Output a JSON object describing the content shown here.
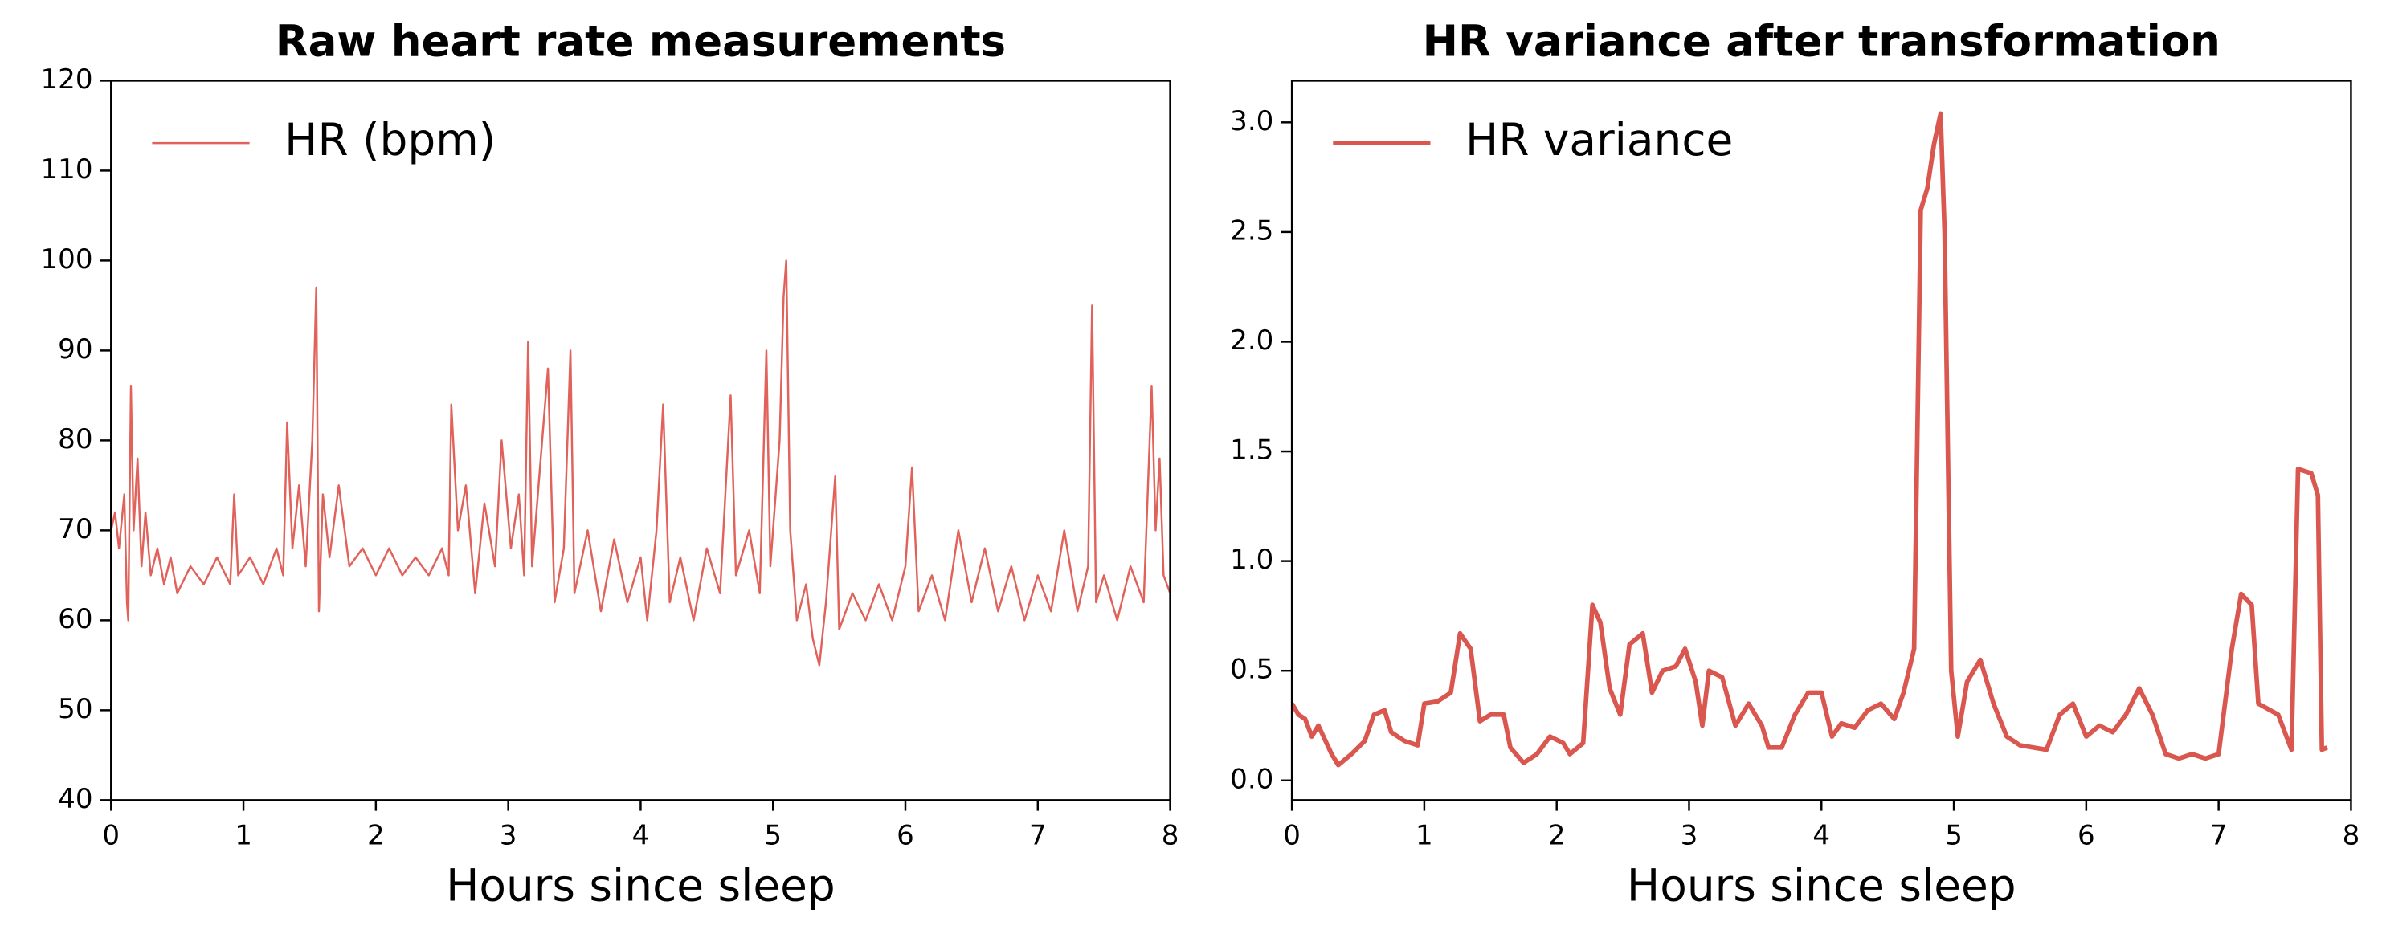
{
  "chart_data": [
    {
      "type": "line",
      "title": "Raw heart rate measurements",
      "xlabel": "Hours since sleep",
      "x": [
        0,
        0.03,
        0.06,
        0.1,
        0.12,
        0.13,
        0.15,
        0.17,
        0.2,
        0.23,
        0.26,
        0.3,
        0.35,
        0.4,
        0.45,
        0.5,
        0.6,
        0.7,
        0.8,
        0.9,
        0.93,
        0.96,
        1.05,
        1.15,
        1.25,
        1.3,
        1.33,
        1.37,
        1.42,
        1.47,
        1.52,
        1.55,
        1.57,
        1.6,
        1.65,
        1.72,
        1.8,
        1.9,
        2.0,
        2.1,
        2.2,
        2.3,
        2.4,
        2.5,
        2.55,
        2.57,
        2.62,
        2.68,
        2.75,
        2.82,
        2.9,
        2.95,
        3.02,
        3.08,
        3.12,
        3.15,
        3.18,
        3.3,
        3.35,
        3.42,
        3.47,
        3.5,
        3.6,
        3.7,
        3.8,
        3.9,
        4.0,
        4.05,
        4.12,
        4.17,
        4.22,
        4.3,
        4.4,
        4.5,
        4.6,
        4.68,
        4.72,
        4.82,
        4.9,
        4.95,
        4.98,
        5.05,
        5.08,
        5.1,
        5.13,
        5.18,
        5.25,
        5.3,
        5.35,
        5.4,
        5.47,
        5.5,
        5.6,
        5.7,
        5.8,
        5.9,
        6.0,
        6.05,
        6.1,
        6.2,
        6.3,
        6.4,
        6.5,
        6.6,
        6.7,
        6.8,
        6.9,
        7.0,
        7.1,
        7.2,
        7.3,
        7.38,
        7.41,
        7.44,
        7.5,
        7.6,
        7.7,
        7.8,
        7.86,
        7.89,
        7.92,
        7.95,
        8.0
      ],
      "series": [
        {
          "name": "HR (bpm)",
          "color": "#e0625a",
          "values": [
            70,
            72,
            68,
            74,
            62,
            60,
            86,
            70,
            78,
            66,
            72,
            65,
            68,
            64,
            67,
            63,
            66,
            64,
            67,
            64,
            74,
            65,
            67,
            64,
            68,
            65,
            82,
            68,
            75,
            66,
            80,
            97,
            61,
            74,
            67,
            75,
            66,
            68,
            65,
            68,
            65,
            67,
            65,
            68,
            65,
            84,
            70,
            75,
            63,
            73,
            66,
            80,
            68,
            74,
            65,
            91,
            66,
            88,
            62,
            68,
            90,
            63,
            70,
            61,
            69,
            62,
            67,
            60,
            70,
            84,
            62,
            67,
            60,
            68,
            63,
            85,
            65,
            70,
            63,
            90,
            66,
            80,
            96,
            100,
            70,
            60,
            64,
            58,
            55,
            62,
            76,
            59,
            63,
            60,
            64,
            60,
            66,
            77,
            61,
            65,
            60,
            70,
            62,
            68,
            61,
            66,
            60,
            65,
            61,
            70,
            61,
            66,
            95,
            62,
            65,
            60,
            66,
            62,
            86,
            70,
            78,
            65,
            63
          ]
        }
      ],
      "xlim": [
        0,
        8
      ],
      "ylim": [
        40,
        120
      ],
      "xticks": [
        0,
        1,
        2,
        3,
        4,
        5,
        6,
        7,
        8
      ],
      "yticks": [
        40,
        50,
        60,
        70,
        80,
        90,
        100,
        110,
        120
      ],
      "legend": "upper left",
      "line_width": 1.3
    },
    {
      "type": "line",
      "title": "HR variance after transformation",
      "xlabel": "Hours since sleep",
      "x": [
        0,
        0.05,
        0.1,
        0.15,
        0.2,
        0.3,
        0.35,
        0.45,
        0.55,
        0.62,
        0.7,
        0.75,
        0.85,
        0.95,
        1.0,
        1.1,
        1.2,
        1.27,
        1.35,
        1.42,
        1.5,
        1.6,
        1.65,
        1.75,
        1.85,
        1.95,
        2.05,
        2.1,
        2.2,
        2.27,
        2.33,
        2.4,
        2.48,
        2.55,
        2.65,
        2.72,
        2.8,
        2.9,
        2.97,
        3.05,
        3.1,
        3.15,
        3.25,
        3.35,
        3.45,
        3.55,
        3.6,
        3.7,
        3.8,
        3.9,
        4.0,
        4.08,
        4.15,
        4.25,
        4.35,
        4.45,
        4.55,
        4.62,
        4.7,
        4.75,
        4.8,
        4.85,
        4.9,
        4.93,
        4.98,
        5.03,
        5.1,
        5.2,
        5.3,
        5.4,
        5.5,
        5.6,
        5.7,
        5.8,
        5.9,
        6.0,
        6.1,
        6.2,
        6.3,
        6.4,
        6.5,
        6.6,
        6.7,
        6.8,
        6.9,
        7.0,
        7.1,
        7.17,
        7.25,
        7.3,
        7.45,
        7.55,
        7.6,
        7.7,
        7.75,
        7.78,
        7.82
      ],
      "series": [
        {
          "name": "HR variance",
          "color": "#d9574f",
          "values": [
            0.35,
            0.3,
            0.28,
            0.2,
            0.25,
            0.12,
            0.07,
            0.12,
            0.18,
            0.3,
            0.32,
            0.22,
            0.18,
            0.16,
            0.35,
            0.36,
            0.4,
            0.67,
            0.6,
            0.27,
            0.3,
            0.3,
            0.15,
            0.08,
            0.12,
            0.2,
            0.17,
            0.12,
            0.17,
            0.8,
            0.72,
            0.42,
            0.3,
            0.62,
            0.67,
            0.4,
            0.5,
            0.52,
            0.6,
            0.45,
            0.25,
            0.5,
            0.47,
            0.25,
            0.35,
            0.25,
            0.15,
            0.15,
            0.3,
            0.4,
            0.4,
            0.2,
            0.26,
            0.24,
            0.32,
            0.35,
            0.28,
            0.4,
            0.6,
            2.6,
            2.7,
            2.9,
            3.04,
            2.5,
            0.5,
            0.2,
            0.45,
            0.55,
            0.35,
            0.2,
            0.16,
            0.15,
            0.14,
            0.3,
            0.35,
            0.2,
            0.25,
            0.22,
            0.3,
            0.42,
            0.3,
            0.12,
            0.1,
            0.12,
            0.1,
            0.12,
            0.6,
            0.85,
            0.8,
            0.35,
            0.3,
            0.14,
            1.42,
            1.4,
            1.3,
            0.14,
            0.15
          ]
        }
      ],
      "xlim": [
        0,
        8
      ],
      "ylim": [
        -0.09,
        3.19
      ],
      "xticks": [
        0,
        1,
        2,
        3,
        4,
        5,
        6,
        7,
        8
      ],
      "yticks": [
        {
          "value": 0,
          "label": "0.0"
        },
        0.5,
        {
          "value": 1,
          "label": "1.0"
        },
        1.5,
        {
          "value": 2,
          "label": "2.0"
        },
        2.5,
        {
          "value": 3,
          "label": "3.0"
        }
      ],
      "legend": "upper left",
      "line_width": 3
    }
  ]
}
